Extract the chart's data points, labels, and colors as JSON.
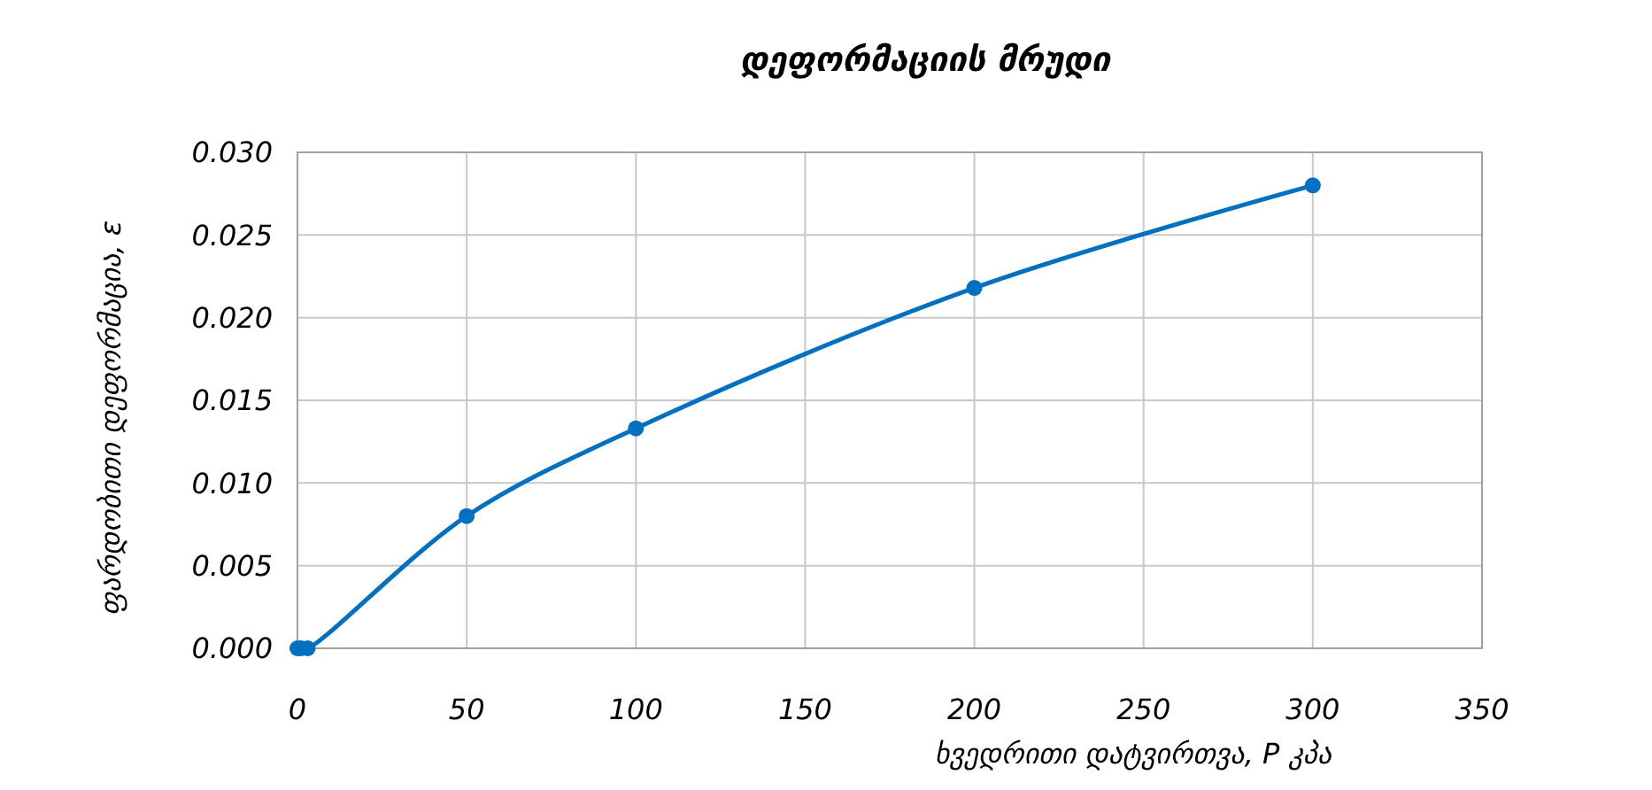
{
  "chart_data": {
    "type": "line",
    "title": "დეფორმაციის მრუდი",
    "xlabel": "ხვედრითი დატვირთვა, P  კპა",
    "ylabel": "ფარდობითი დეფორმაცია, ε",
    "x": [
      0,
      1,
      3,
      50,
      100,
      200,
      300
    ],
    "series": [
      {
        "color": "#0070c0",
        "values": [
          0,
          0,
          0,
          0.008,
          0.0133,
          0.0218,
          0.028
        ]
      }
    ],
    "xlim": [
      0,
      350
    ],
    "xticks": [
      0,
      50,
      100,
      150,
      200,
      250,
      300,
      350
    ],
    "ylim": [
      0,
      0.03
    ],
    "yticks": [
      {
        "value": 0,
        "label": "0.000"
      },
      {
        "value": 0.005,
        "label": "0.005"
      },
      {
        "value": 0.01,
        "label": "0.010"
      },
      {
        "value": 0.015,
        "label": "0.015"
      },
      {
        "value": 0.02,
        "label": "0.020"
      },
      {
        "value": 0.025,
        "label": "0.025"
      },
      {
        "value": 0.03,
        "label": "0.030"
      }
    ],
    "grid": true,
    "marker": "circle",
    "line_style": "solid"
  }
}
